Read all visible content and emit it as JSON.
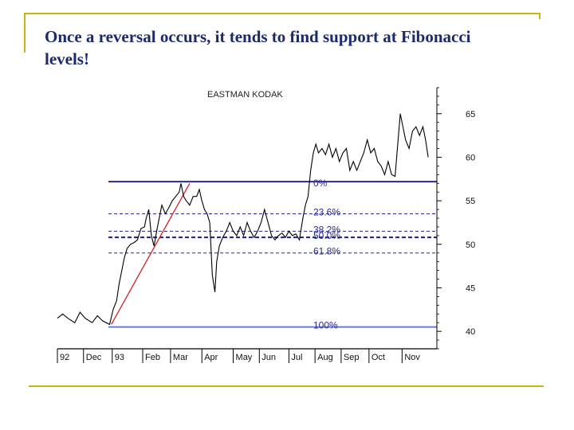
{
  "slide": {
    "title": "Once a reversal occurs, it tends to find support at Fibonacci levels!"
  },
  "colors": {
    "title": "#1a2a6c",
    "frame": "#c8b414",
    "price_line": "#000000",
    "fib_level": "#2a2a8a",
    "trend_line": "#d42020",
    "low_line": "#6a7ad8"
  },
  "chart_data": {
    "type": "line",
    "title": "EASTMAN KODAK",
    "xlabel": "",
    "ylabel": "",
    "ylim": [
      38,
      68
    ],
    "grid": false,
    "legend": "none",
    "x_ticks": [
      "92",
      "Dec",
      "93",
      "Feb",
      "Mar",
      "Apr",
      "May",
      "Jun",
      "Jul",
      "Aug",
      "Sep",
      "Oct",
      "Nov"
    ],
    "y_ticks": [
      40,
      45,
      50,
      55,
      60,
      65
    ],
    "series": [
      {
        "points": [
          [
            0.0,
            41.5
          ],
          [
            0.3,
            42.0
          ],
          [
            0.6,
            41.5
          ],
          [
            1.0,
            41.0
          ],
          [
            1.3,
            42.2
          ],
          [
            1.6,
            41.5
          ],
          [
            2.0,
            41.0
          ],
          [
            2.3,
            41.8
          ],
          [
            2.6,
            41.2
          ],
          [
            3.0,
            40.8
          ],
          [
            3.2,
            42.5
          ],
          [
            3.4,
            43.5
          ],
          [
            3.55,
            45.5
          ],
          [
            3.7,
            47.0
          ],
          [
            3.85,
            48.5
          ],
          [
            4.0,
            49.5
          ],
          [
            4.2,
            50.0
          ],
          [
            4.4,
            50.2
          ],
          [
            4.6,
            50.5
          ],
          [
            4.8,
            51.8
          ],
          [
            5.0,
            52.0
          ],
          [
            5.1,
            53.0
          ],
          [
            5.25,
            54.0
          ],
          [
            5.4,
            51.0
          ],
          [
            5.55,
            49.8
          ],
          [
            5.7,
            51.5
          ],
          [
            5.85,
            53.0
          ],
          [
            6.0,
            54.5
          ],
          [
            6.2,
            53.5
          ],
          [
            6.4,
            54.2
          ],
          [
            6.6,
            55.0
          ],
          [
            6.8,
            55.5
          ],
          [
            7.0,
            56.0
          ],
          [
            7.1,
            57.0
          ],
          [
            7.25,
            55.5
          ],
          [
            7.4,
            55.0
          ],
          [
            7.6,
            54.5
          ],
          [
            7.8,
            55.5
          ],
          [
            8.0,
            55.5
          ],
          [
            8.15,
            56.3
          ],
          [
            8.3,
            55.0
          ],
          [
            8.45,
            54.0
          ],
          [
            8.6,
            53.5
          ],
          [
            8.75,
            52.5
          ],
          [
            8.9,
            46.5
          ],
          [
            9.05,
            44.5
          ],
          [
            9.15,
            48.0
          ],
          [
            9.3,
            49.8
          ],
          [
            9.5,
            50.8
          ],
          [
            9.7,
            51.5
          ],
          [
            9.9,
            52.5
          ],
          [
            10.1,
            51.5
          ],
          [
            10.3,
            51.0
          ],
          [
            10.5,
            52.0
          ],
          [
            10.7,
            51.0
          ],
          [
            10.9,
            52.5
          ],
          [
            11.1,
            51.5
          ],
          [
            11.3,
            50.8
          ],
          [
            11.5,
            51.5
          ],
          [
            11.7,
            52.5
          ],
          [
            11.9,
            54.0
          ],
          [
            12.1,
            52.5
          ],
          [
            12.3,
            51.0
          ],
          [
            12.5,
            50.5
          ],
          [
            12.7,
            51.0
          ],
          [
            12.9,
            51.3
          ],
          [
            13.1,
            50.8
          ],
          [
            13.3,
            51.5
          ],
          [
            13.5,
            51.0
          ],
          [
            13.7,
            51.2
          ],
          [
            13.9,
            50.5
          ],
          [
            14.1,
            53.0
          ],
          [
            14.25,
            54.5
          ],
          [
            14.4,
            55.5
          ],
          [
            14.55,
            58.5
          ],
          [
            14.7,
            60.5
          ],
          [
            14.85,
            61.5
          ],
          [
            15.0,
            60.5
          ],
          [
            15.2,
            61.0
          ],
          [
            15.4,
            60.3
          ],
          [
            15.6,
            61.5
          ],
          [
            15.8,
            60.0
          ],
          [
            16.0,
            61.0
          ],
          [
            16.2,
            59.5
          ],
          [
            16.4,
            60.5
          ],
          [
            16.6,
            61.0
          ],
          [
            16.8,
            58.5
          ],
          [
            17.0,
            59.5
          ],
          [
            17.2,
            58.5
          ],
          [
            17.4,
            59.5
          ],
          [
            17.6,
            60.5
          ],
          [
            17.8,
            62.0
          ],
          [
            18.0,
            60.5
          ],
          [
            18.2,
            61.0
          ],
          [
            18.4,
            59.5
          ],
          [
            18.6,
            59.0
          ],
          [
            18.8,
            58.0
          ],
          [
            19.0,
            59.5
          ],
          [
            19.2,
            58.0
          ],
          [
            19.4,
            57.8
          ],
          [
            19.55,
            61.5
          ],
          [
            19.7,
            65.0
          ],
          [
            19.85,
            63.5
          ],
          [
            20.0,
            62.0
          ],
          [
            20.2,
            61.0
          ],
          [
            20.4,
            63.0
          ],
          [
            20.6,
            63.5
          ],
          [
            20.8,
            62.5
          ],
          [
            21.0,
            63.5
          ],
          [
            21.15,
            62.0
          ],
          [
            21.3,
            60.0
          ]
        ]
      }
    ],
    "fib_levels": [
      {
        "label": "0%",
        "value": 57.2,
        "style": "solid"
      },
      {
        "label": "23.6%",
        "value": 53.5,
        "style": "dashed"
      },
      {
        "label": "38.2%",
        "value": 51.5,
        "style": "dashed"
      },
      {
        "label": "50.0%",
        "value": 50.8,
        "style": "dashed-bold"
      },
      {
        "label": "61.8%",
        "value": 49.0,
        "style": "dashed"
      },
      {
        "label": "100%",
        "value": 40.5,
        "style": "solid-light"
      }
    ],
    "trend_line": {
      "from": [
        3.1,
        40.8
      ],
      "to": [
        7.6,
        57.0
      ]
    },
    "x_domain": [
      0,
      21.8
    ]
  }
}
